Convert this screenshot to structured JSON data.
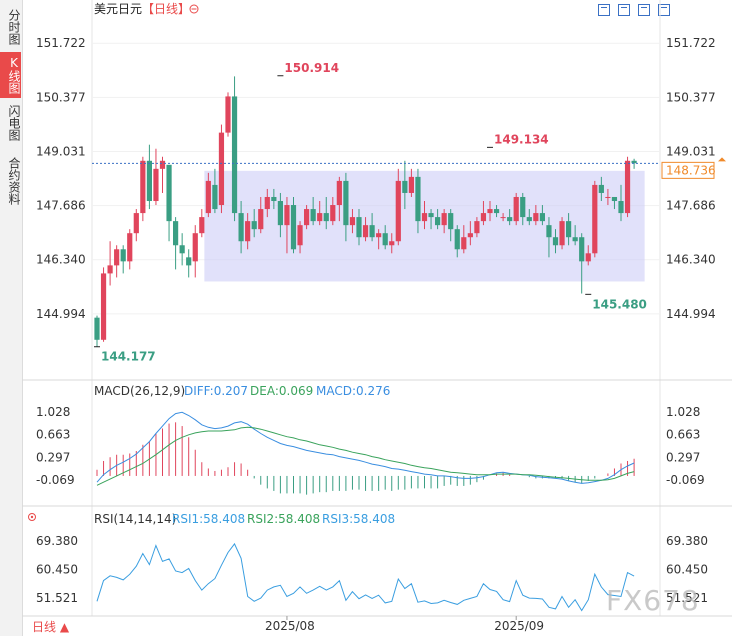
{
  "sidebar": {
    "tabs": [
      {
        "label": "分时图",
        "active": false
      },
      {
        "label": "K线图",
        "active": true
      },
      {
        "label": "闪电图",
        "active": false
      },
      {
        "label": "合约资料",
        "active": false
      }
    ]
  },
  "header": {
    "symbol": "美元日元",
    "period": "【日线】",
    "toolbar_icons": [
      "crosshair-icon",
      "fit-icon",
      "text-icon",
      "fullscreen-icon"
    ]
  },
  "bottom": {
    "period_label": "日线",
    "watermark": "FX678"
  },
  "colors": {
    "up": "#e0455c",
    "down": "#3a9e83",
    "diff": "#3a8ee0",
    "dea": "#3aa35c",
    "accent": "#e94a4a",
    "rsi": "#3a9ee0",
    "box": "#c8c8f5"
  },
  "chart_data": [
    {
      "type": "candlestick",
      "title": "美元日元【日线】",
      "x_tick_labels": [
        {
          "label": "2025/08",
          "index": 29
        },
        {
          "label": "2025/09",
          "index": 64
        }
      ],
      "ylim": [
        143.4,
        152.3
      ],
      "y_ticks": [
        "151.722",
        "150.377",
        "149.031",
        "147.686",
        "146.340",
        "144.994"
      ],
      "y_tick_values": [
        151.722,
        150.377,
        149.031,
        147.686,
        146.34,
        144.994
      ],
      "last_price": "148.736",
      "last_price_value": 148.736,
      "annotations": [
        {
          "label": "150.914",
          "index": 28,
          "value": 150.914
        },
        {
          "label": "149.134",
          "index": 60,
          "value": 149.134
        },
        {
          "label": "145.480",
          "index": 75,
          "value": 145.48
        },
        {
          "label": "144.177",
          "index": 0,
          "value": 144.177
        }
      ],
      "consolidation_box": {
        "start_index": 17,
        "end_index": 83,
        "high": 148.55,
        "low": 145.8
      },
      "candles": [
        [
          144.9,
          144.35,
          144.95,
          144.18
        ],
        [
          144.35,
          146.0,
          146.15,
          144.3
        ],
        [
          146.0,
          146.2,
          146.8,
          145.7
        ],
        [
          146.2,
          146.6,
          146.7,
          145.9
        ],
        [
          146.6,
          146.3,
          146.7,
          146.0
        ],
        [
          146.3,
          147.0,
          147.1,
          146.1
        ],
        [
          147.0,
          147.5,
          147.6,
          146.8
        ],
        [
          147.5,
          148.8,
          148.9,
          147.3
        ],
        [
          148.8,
          147.8,
          149.2,
          147.6
        ],
        [
          147.8,
          148.6,
          149.1,
          147.7
        ],
        [
          148.6,
          148.8,
          148.9,
          148.0
        ],
        [
          148.7,
          147.3,
          148.3,
          146.8
        ],
        [
          147.3,
          146.7,
          147.4,
          146.1
        ],
        [
          146.7,
          146.5,
          147.0,
          146.2
        ],
        [
          146.4,
          146.2,
          146.6,
          145.9
        ],
        [
          146.3,
          147.0,
          147.2,
          145.9
        ],
        [
          147.0,
          147.4,
          147.6,
          146.9
        ],
        [
          147.5,
          148.3,
          148.5,
          147.4
        ],
        [
          148.2,
          147.6,
          148.6,
          147.5
        ],
        [
          147.7,
          149.5,
          149.7,
          147.5
        ],
        [
          149.5,
          150.4,
          150.5,
          149.4
        ],
        [
          150.4,
          147.5,
          150.9,
          147.3
        ],
        [
          147.5,
          146.8,
          147.8,
          146.5
        ],
        [
          146.8,
          147.3,
          147.5,
          146.6
        ],
        [
          147.3,
          147.1,
          147.6,
          146.9
        ],
        [
          147.1,
          147.6,
          147.9,
          147.0
        ],
        [
          147.6,
          147.9,
          148.1,
          147.4
        ],
        [
          147.9,
          147.8,
          148.1,
          147.6
        ],
        [
          147.8,
          147.2,
          148.0,
          146.9
        ],
        [
          147.2,
          147.7,
          147.9,
          146.5
        ],
        [
          147.7,
          146.6,
          147.9,
          146.5
        ],
        [
          146.7,
          147.2,
          147.3,
          146.5
        ],
        [
          147.2,
          147.6,
          147.7,
          147.1
        ],
        [
          147.6,
          147.3,
          147.9,
          147.2
        ],
        [
          147.3,
          147.5,
          147.8,
          147.2
        ],
        [
          147.5,
          147.3,
          147.9,
          147.1
        ],
        [
          147.3,
          147.7,
          147.9,
          147.2
        ],
        [
          147.7,
          148.3,
          148.4,
          147.3
        ],
        [
          148.3,
          147.2,
          148.5,
          146.8
        ],
        [
          147.2,
          147.4,
          147.6,
          147.0
        ],
        [
          147.4,
          146.9,
          147.6,
          146.7
        ],
        [
          146.9,
          147.2,
          147.4,
          146.8
        ],
        [
          147.2,
          146.9,
          147.5,
          146.8
        ],
        [
          146.9,
          147.0,
          147.1,
          146.6
        ],
        [
          147.0,
          146.7,
          147.2,
          146.6
        ],
        [
          146.7,
          146.8,
          147.0,
          146.5
        ],
        [
          146.8,
          148.3,
          148.6,
          146.7
        ],
        [
          148.3,
          148.0,
          148.8,
          147.6
        ],
        [
          148.0,
          148.4,
          148.6,
          147.9
        ],
        [
          148.4,
          147.3,
          148.6,
          147.0
        ],
        [
          147.3,
          147.5,
          147.8,
          147.1
        ],
        [
          147.5,
          147.4,
          147.6,
          147.1
        ],
        [
          147.4,
          147.2,
          147.6,
          147.1
        ],
        [
          147.2,
          147.5,
          147.6,
          147.0
        ],
        [
          147.5,
          147.1,
          147.6,
          146.8
        ],
        [
          147.1,
          146.6,
          147.2,
          146.4
        ],
        [
          146.6,
          146.9,
          147.2,
          146.5
        ],
        [
          146.9,
          147.0,
          147.3,
          146.7
        ],
        [
          147.0,
          147.3,
          147.4,
          146.9
        ],
        [
          147.3,
          147.5,
          147.8,
          147.2
        ],
        [
          147.5,
          147.6,
          147.8,
          147.3
        ],
        [
          147.6,
          147.5,
          147.7,
          147.4
        ],
        [
          147.4,
          147.4,
          147.5,
          147.3
        ],
        [
          147.4,
          147.3,
          147.6,
          147.2
        ],
        [
          147.3,
          147.9,
          148.0,
          147.2
        ],
        [
          147.9,
          147.4,
          148.0,
          147.2
        ],
        [
          147.4,
          147.3,
          147.6,
          147.2
        ],
        [
          147.3,
          147.5,
          147.7,
          147.2
        ],
        [
          147.5,
          147.3,
          147.7,
          147.2
        ],
        [
          147.2,
          146.9,
          147.4,
          146.4
        ],
        [
          146.9,
          146.7,
          147.1,
          146.5
        ],
        [
          146.7,
          147.3,
          147.4,
          146.6
        ],
        [
          147.3,
          146.9,
          147.5,
          146.7
        ],
        [
          146.9,
          146.8,
          147.2,
          146.7
        ],
        [
          146.9,
          146.3,
          147.0,
          145.5
        ],
        [
          146.3,
          146.5,
          146.7,
          146.2
        ],
        [
          146.5,
          148.2,
          148.3,
          146.4
        ],
        [
          148.2,
          148.0,
          148.4,
          147.8
        ],
        [
          147.9,
          147.9,
          148.1,
          147.7
        ],
        [
          147.9,
          147.8,
          147.9,
          147.6
        ],
        [
          147.8,
          147.5,
          148.2,
          147.3
        ],
        [
          147.5,
          148.8,
          148.9,
          147.4
        ],
        [
          148.8,
          148.74,
          148.85,
          148.6
        ]
      ]
    },
    {
      "type": "macd",
      "label": "MACD(26,12,9)",
      "diff_label": "DIFF:0.207",
      "dea_label": "DEA:0.069",
      "macd_label": "MACD:0.276",
      "ylim": [
        -0.45,
        1.25
      ],
      "y_ticks": [
        "1.028",
        "0.663",
        "0.297",
        "-0.069"
      ],
      "y_tick_values": [
        1.028,
        0.663,
        0.297,
        -0.069
      ],
      "diff": [
        -0.1,
        0.02,
        0.1,
        0.17,
        0.22,
        0.28,
        0.35,
        0.45,
        0.55,
        0.68,
        0.8,
        0.92,
        1.0,
        1.02,
        0.97,
        0.9,
        0.82,
        0.78,
        0.76,
        0.77,
        0.8,
        0.85,
        0.87,
        0.83,
        0.75,
        0.68,
        0.62,
        0.57,
        0.52,
        0.49,
        0.47,
        0.44,
        0.41,
        0.39,
        0.37,
        0.35,
        0.34,
        0.31,
        0.29,
        0.27,
        0.25,
        0.22,
        0.19,
        0.17,
        0.15,
        0.12,
        0.11,
        0.09,
        0.07,
        0.05,
        0.03,
        0.02,
        0.0,
        0.0,
        -0.01,
        -0.03,
        -0.04,
        -0.04,
        -0.03,
        -0.01,
        0.02,
        0.05,
        0.06,
        0.04,
        0.03,
        0.02,
        0.01,
        -0.01,
        -0.02,
        -0.03,
        -0.04,
        -0.05,
        -0.08,
        -0.1,
        -0.12,
        -0.11,
        -0.09,
        -0.07,
        -0.04,
        0.02,
        0.1,
        0.16,
        0.207
      ],
      "dea": [
        -0.15,
        -0.1,
        -0.05,
        0.0,
        0.05,
        0.1,
        0.15,
        0.2,
        0.27,
        0.34,
        0.42,
        0.5,
        0.57,
        0.62,
        0.66,
        0.69,
        0.71,
        0.72,
        0.72,
        0.72,
        0.73,
        0.74,
        0.77,
        0.78,
        0.77,
        0.75,
        0.72,
        0.69,
        0.66,
        0.63,
        0.61,
        0.58,
        0.56,
        0.53,
        0.5,
        0.48,
        0.46,
        0.43,
        0.41,
        0.38,
        0.36,
        0.34,
        0.31,
        0.29,
        0.26,
        0.24,
        0.22,
        0.2,
        0.17,
        0.15,
        0.13,
        0.12,
        0.1,
        0.08,
        0.06,
        0.05,
        0.04,
        0.03,
        0.02,
        0.02,
        0.02,
        0.03,
        0.03,
        0.03,
        0.03,
        0.02,
        0.02,
        0.01,
        0.0,
        -0.01,
        -0.02,
        -0.03,
        -0.04,
        -0.05,
        -0.06,
        -0.07,
        -0.07,
        -0.07,
        -0.06,
        -0.04,
        0.0,
        0.04,
        0.069
      ],
      "macd": [
        0.1,
        0.24,
        0.3,
        0.34,
        0.34,
        0.36,
        0.4,
        0.5,
        0.56,
        0.68,
        0.76,
        0.84,
        0.86,
        0.8,
        0.62,
        0.42,
        0.22,
        0.12,
        0.08,
        0.1,
        0.14,
        0.22,
        0.2,
        0.1,
        -0.04,
        -0.14,
        -0.2,
        -0.24,
        -0.28,
        -0.28,
        -0.28,
        -0.28,
        -0.3,
        -0.28,
        -0.26,
        -0.26,
        -0.24,
        -0.24,
        -0.24,
        -0.22,
        -0.22,
        -0.24,
        -0.24,
        -0.24,
        -0.22,
        -0.24,
        -0.22,
        -0.22,
        -0.2,
        -0.2,
        -0.2,
        -0.2,
        -0.2,
        -0.16,
        -0.14,
        -0.16,
        -0.16,
        -0.14,
        -0.1,
        -0.06,
        0.0,
        0.04,
        0.06,
        0.02,
        0.0,
        0.0,
        -0.02,
        -0.04,
        -0.04,
        -0.04,
        -0.04,
        -0.04,
        -0.08,
        -0.1,
        -0.12,
        -0.08,
        -0.04,
        0.0,
        0.04,
        0.12,
        0.2,
        0.24,
        0.276
      ]
    },
    {
      "type": "rsi",
      "label": "RSI(14,14,14)",
      "rsi1_label": "RSI1:58.408",
      "rsi2_label": "RSI2:58.408",
      "rsi3_label": "RSI3:58.408",
      "ylim": [
        46.5,
        73.5
      ],
      "y_ticks": [
        "69.380",
        "60.450",
        "51.521"
      ],
      "y_tick_values": [
        69.38,
        60.45,
        51.521
      ],
      "values": [
        50.5,
        57.0,
        58.5,
        58.0,
        57.2,
        59.0,
        61.5,
        65.5,
        62.0,
        68.0,
        63.0,
        63.8,
        60.0,
        59.5,
        60.8,
        57.0,
        54.0,
        56.0,
        57.6,
        61.8,
        65.8,
        68.5,
        64.0,
        52.0,
        50.5,
        51.5,
        54.0,
        55.0,
        55.5,
        52.0,
        53.0,
        55.0,
        53.0,
        54.0,
        55.2,
        54.0,
        55.0,
        57.0,
        50.8,
        53.5,
        51.3,
        52.5,
        51.4,
        52.4,
        50.0,
        50.5,
        57.5,
        54.5,
        56.0,
        50.2,
        50.6,
        49.8,
        50.0,
        50.8,
        50.1,
        49.5,
        50.8,
        51.4,
        52.0,
        56.0,
        54.2,
        53.6,
        51.0,
        50.4,
        57.0,
        52.4,
        51.5,
        51.4,
        51.2,
        48.6,
        48.1,
        52.0,
        48.6,
        51.0,
        47.6,
        51.0,
        59.0,
        55.0,
        52.6,
        52.3,
        52.0,
        59.5,
        58.4
      ]
    }
  ]
}
